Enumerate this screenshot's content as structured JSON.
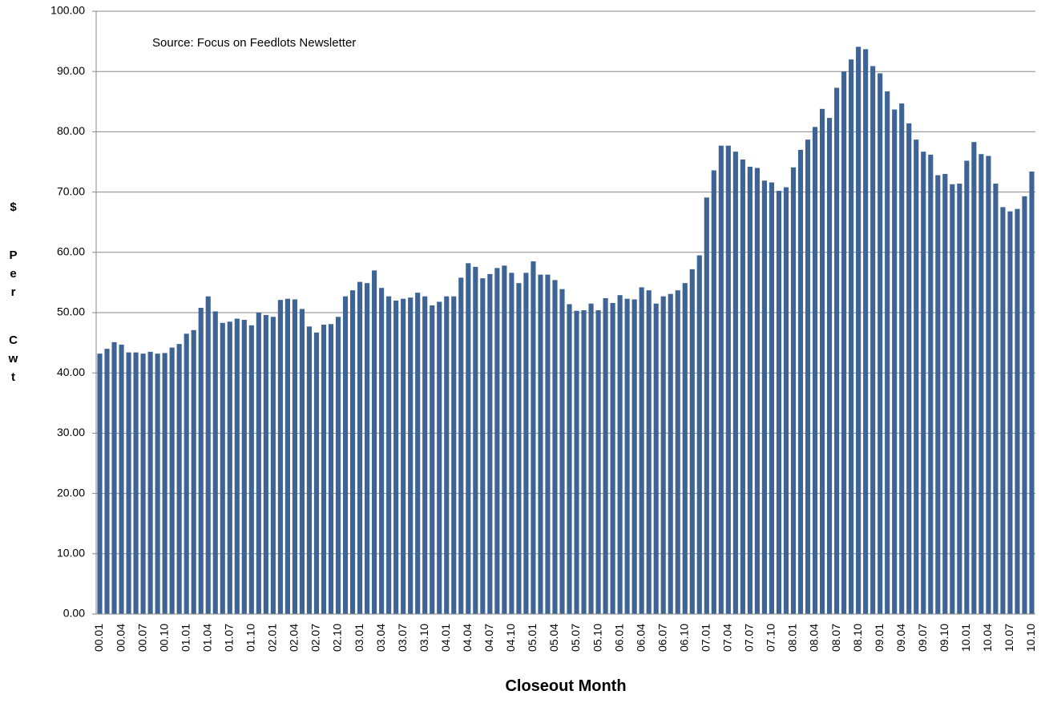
{
  "chart_data": {
    "type": "bar",
    "annotation": "Source:  Focus on Feedlots Newsletter",
    "x_label": "Closeout Month",
    "y_label": "$ Per Cwt",
    "color": "#3e6496",
    "grid": true,
    "ylim": [
      0,
      100
    ],
    "yticks": [
      {
        "value": 0,
        "label": "0.00"
      },
      {
        "value": 10,
        "label": "10.00"
      },
      {
        "value": 20,
        "label": "20.00"
      },
      {
        "value": 30,
        "label": "30.00"
      },
      {
        "value": 40,
        "label": "40.00"
      },
      {
        "value": 50,
        "label": "50.00"
      },
      {
        "value": 60,
        "label": "60.00"
      },
      {
        "value": 70,
        "label": "70.00"
      },
      {
        "value": 80,
        "label": "80.00"
      },
      {
        "value": 90,
        "label": "90.00"
      },
      {
        "value": 100,
        "label": "100.00"
      }
    ],
    "categories": [
      "00.01",
      null,
      null,
      "00.04",
      null,
      null,
      "00.07",
      null,
      null,
      "00.10",
      null,
      null,
      "01.01",
      null,
      null,
      "01.04",
      null,
      null,
      "01.07",
      null,
      null,
      "01.10",
      null,
      null,
      "02.01",
      null,
      null,
      "02.04",
      null,
      null,
      "02.07",
      null,
      null,
      "02.10",
      null,
      null,
      "03.01",
      null,
      null,
      "03.04",
      null,
      null,
      "03.07",
      null,
      null,
      "03.10",
      null,
      null,
      "04.01",
      null,
      null,
      "04.04",
      null,
      null,
      "04.07",
      null,
      null,
      "04.10",
      null,
      null,
      "05.01",
      null,
      null,
      "05.04",
      null,
      null,
      "05.07",
      null,
      null,
      "05.10",
      null,
      null,
      "06.01",
      null,
      null,
      "06.04",
      null,
      null,
      "06.07",
      null,
      null,
      "06.10",
      null,
      null,
      "07.01",
      null,
      null,
      "07.04",
      null,
      null,
      "07.07",
      null,
      null,
      "07.10",
      null,
      null,
      "08.01",
      null,
      null,
      "08.04",
      null,
      null,
      "08.07",
      null,
      null,
      "08.10",
      null,
      null,
      "09.01",
      null,
      null,
      "09.04",
      null,
      null,
      "09.07",
      null,
      null,
      "09.10",
      null,
      null,
      "10.01",
      null,
      null,
      "10.04",
      null,
      null,
      "10.07",
      null,
      null,
      "10.10"
    ],
    "values": [
      43.2,
      44.0,
      45.1,
      44.7,
      43.4,
      43.4,
      43.2,
      43.5,
      43.2,
      43.3,
      44.2,
      44.8,
      46.5,
      47.1,
      50.8,
      52.7,
      50.2,
      48.3,
      48.5,
      49.0,
      48.8,
      47.9,
      50.0,
      49.6,
      49.3,
      52.1,
      52.3,
      52.2,
      50.6,
      47.7,
      46.7,
      48.0,
      48.1,
      49.3,
      52.7,
      53.7,
      55.1,
      54.9,
      57.0,
      54.1,
      52.7,
      52.0,
      52.3,
      52.5,
      53.3,
      52.7,
      51.2,
      51.8,
      52.7,
      52.7,
      55.8,
      58.2,
      57.6,
      55.7,
      56.4,
      57.4,
      57.8,
      56.6,
      54.9,
      56.6,
      58.5,
      56.3,
      56.3,
      55.4,
      53.9,
      51.4,
      50.3,
      50.4,
      51.5,
      50.4,
      52.4,
      51.6,
      52.9,
      52.3,
      52.2,
      54.2,
      53.7,
      51.5,
      52.7,
      53.1,
      53.7,
      54.9,
      57.2,
      59.5,
      69.1,
      73.6,
      77.7,
      77.7,
      76.7,
      75.4,
      74.2,
      74.0,
      71.9,
      71.6,
      70.2,
      70.8,
      74.1,
      77.0,
      78.7,
      80.8,
      83.8,
      82.3,
      87.3,
      90.0,
      92.0,
      94.1,
      93.7,
      90.9,
      89.7,
      86.7,
      83.7,
      84.7,
      81.4,
      78.7,
      76.7,
      76.2,
      72.8,
      73.0,
      71.3,
      71.4,
      75.2,
      78.3,
      76.3,
      76.0,
      71.4,
      67.5,
      66.8,
      67.2,
      69.3,
      73.4
    ]
  }
}
